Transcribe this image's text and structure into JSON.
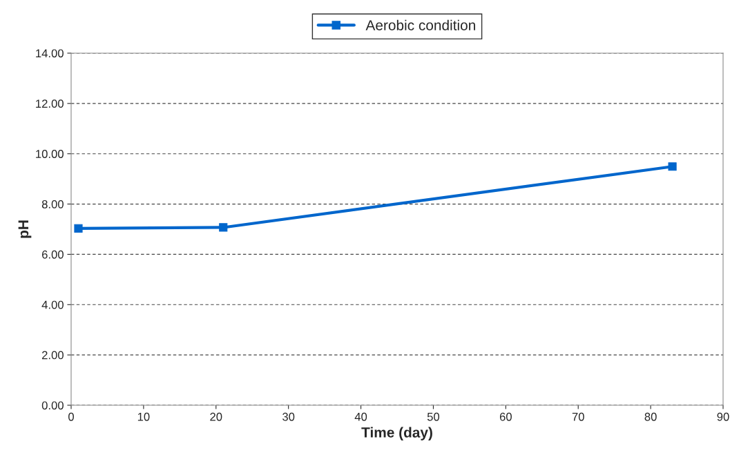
{
  "chart_data": {
    "type": "line",
    "xlabel": "Time (day)",
    "ylabel": "pH",
    "x": [
      1,
      21,
      83
    ],
    "series": [
      {
        "name": "Aerobic condition",
        "color": "#0066cc",
        "values": [
          7.03,
          7.07,
          9.49
        ]
      }
    ],
    "xlim": [
      0,
      90
    ],
    "xticks": [
      0,
      10,
      20,
      30,
      40,
      50,
      60,
      70,
      80,
      90
    ],
    "ylim": [
      0,
      14
    ],
    "yticks": [
      {
        "value": 0,
        "label": "0.00"
      },
      {
        "value": 2,
        "label": "2.00"
      },
      {
        "value": 4,
        "label": "4.00"
      },
      {
        "value": 6,
        "label": "6.00"
      },
      {
        "value": 8,
        "label": "8.00"
      },
      {
        "value": 10,
        "label": "10.00"
      },
      {
        "value": 12,
        "label": "12.00"
      },
      {
        "value": 14,
        "label": "14.00"
      }
    ],
    "grid": "y",
    "legend": "top",
    "marker": "square",
    "line_style": "solid"
  }
}
